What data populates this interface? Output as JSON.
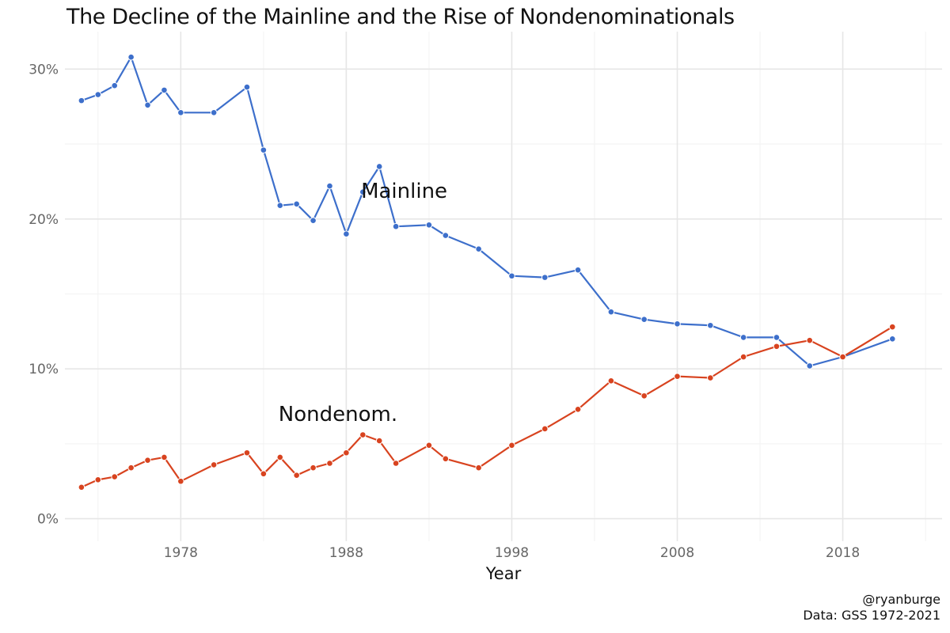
{
  "title": "The Decline of the Mainline and the Rise of Nondenominationals",
  "caption": {
    "line1": "@ryanburge",
    "line2": "Data: GSS 1972-2021"
  },
  "chart_data": {
    "type": "line",
    "title": "The Decline of the Mainline and the Rise of Nondenominationals",
    "xlabel": "Year",
    "ylabel": "",
    "xlim": [
      1971,
      2024
    ],
    "ylim": [
      -1.5,
      32.5
    ],
    "x_ticks": [
      1978,
      1988,
      1998,
      2008,
      2018
    ],
    "x_tick_labels": [
      "1978",
      "1988",
      "1998",
      "2008",
      "2018"
    ],
    "y_ticks": [
      0,
      10,
      20,
      30
    ],
    "y_tick_labels": [
      "0%",
      "10%",
      "20%",
      "30%"
    ],
    "grid": true,
    "legend": "none",
    "series": [
      {
        "name": "Mainline",
        "color": "#3d6fcb",
        "x": [
          1972,
          1973,
          1974,
          1975,
          1976,
          1977,
          1978,
          1980,
          1982,
          1983,
          1984,
          1985,
          1986,
          1987,
          1988,
          1989,
          1990,
          1991,
          1993,
          1994,
          1996,
          1998,
          2000,
          2002,
          2004,
          2006,
          2008,
          2010,
          2012,
          2014,
          2016,
          2018,
          2021
        ],
        "y": [
          27.9,
          28.3,
          28.9,
          30.8,
          27.6,
          28.6,
          27.1,
          27.1,
          28.8,
          24.6,
          20.9,
          21.0,
          19.9,
          22.2,
          19.0,
          21.8,
          23.5,
          19.5,
          19.6,
          18.9,
          18.0,
          16.2,
          16.1,
          16.6,
          13.8,
          13.3,
          13.0,
          12.9,
          12.1,
          12.1,
          10.2,
          10.8,
          12.0
        ]
      },
      {
        "name": "Nondenom.",
        "color": "#d8431f",
        "x": [
          1972,
          1973,
          1974,
          1975,
          1976,
          1977,
          1978,
          1980,
          1982,
          1983,
          1984,
          1985,
          1986,
          1987,
          1988,
          1989,
          1990,
          1991,
          1993,
          1994,
          1996,
          1998,
          2000,
          2002,
          2004,
          2006,
          2008,
          2010,
          2012,
          2014,
          2016,
          2018,
          2021
        ],
        "y": [
          2.1,
          2.6,
          2.8,
          3.4,
          3.9,
          4.1,
          2.5,
          3.6,
          4.4,
          3.0,
          4.1,
          2.9,
          3.4,
          3.7,
          4.4,
          5.6,
          5.2,
          3.7,
          4.9,
          4.0,
          3.4,
          4.9,
          6.0,
          7.3,
          9.2,
          8.2,
          9.5,
          9.4,
          10.8,
          11.5,
          11.9,
          10.8,
          12.8
        ]
      }
    ],
    "annotations": [
      {
        "text": "Mainline",
        "x": 1991.5,
        "y": 21.9,
        "series": "Mainline"
      },
      {
        "text": "Nondenom.",
        "x": 1987.5,
        "y": 7.0,
        "series": "Nondenom."
      }
    ]
  }
}
